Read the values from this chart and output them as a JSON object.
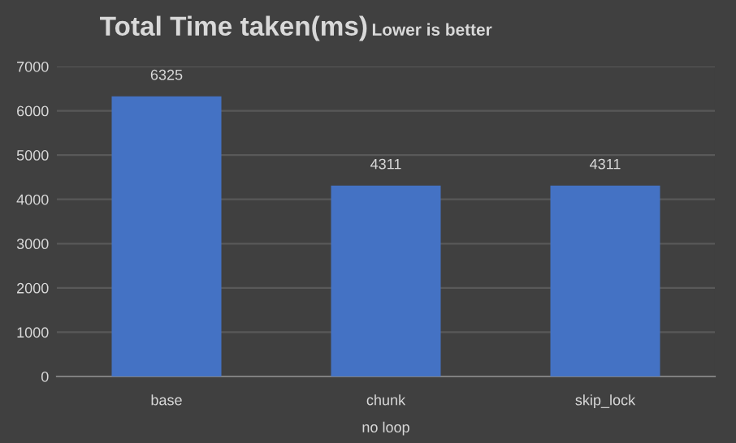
{
  "chart_data": {
    "type": "bar",
    "title": "Total Time taken(ms)",
    "subtitle": "Lower is better",
    "xlabel": "no loop",
    "categories": [
      "base",
      "chunk",
      "skip_lock"
    ],
    "values": [
      6325,
      4311,
      4311
    ],
    "color": "#4472c4",
    "ylim": [
      0,
      7000
    ],
    "yticks": [
      0,
      1000,
      2000,
      3000,
      4000,
      5000,
      6000,
      7000
    ],
    "grid": "y",
    "data_labels": true
  }
}
